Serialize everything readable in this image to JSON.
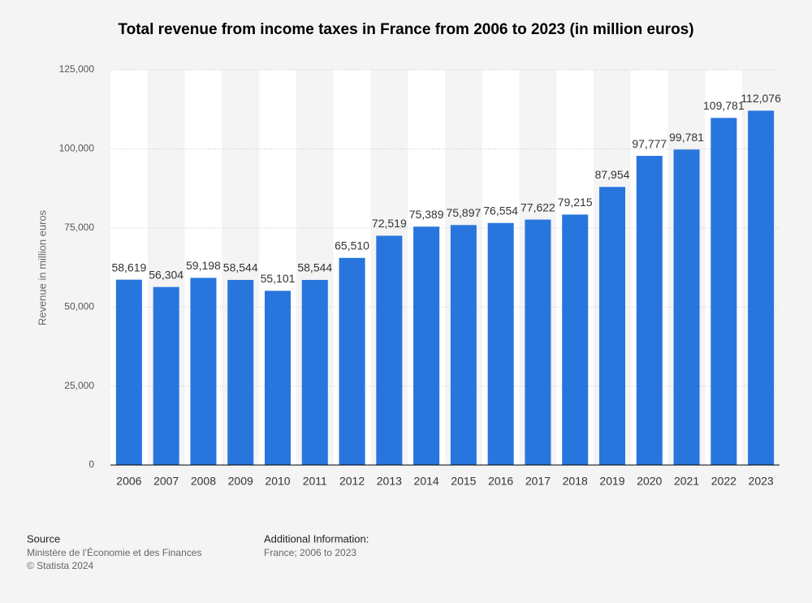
{
  "chart_data": {
    "type": "bar",
    "title": "Total revenue from income taxes in France from 2006 to 2023 (in million euros)",
    "y_label": "Revenue in million euros",
    "categories": [
      "2006",
      "2007",
      "2008",
      "2009",
      "2010",
      "2011",
      "2012",
      "2013",
      "2014",
      "2015",
      "2016",
      "2017",
      "2018",
      "2019",
      "2020",
      "2021",
      "2022",
      "2023"
    ],
    "values": [
      58619,
      56304,
      59198,
      58544,
      55101,
      58544,
      65510,
      72519,
      75389,
      75897,
      76554,
      77622,
      79215,
      87954,
      97777,
      99781,
      109781,
      112076
    ],
    "value_labels": [
      "58,619",
      "56,304",
      "59,198",
      "58,544",
      "55,101",
      "58,544",
      "65,510",
      "72,519",
      "75,389",
      "75,897",
      "76,554",
      "77,622",
      "79,215",
      "87,954",
      "97,777",
      "99,781",
      "109,781",
      "112,076"
    ],
    "color": "#2876dd",
    "ylim": [
      0,
      125000
    ],
    "yticks": [
      0,
      {
        "value": 25000,
        "label": "25,000"
      },
      {
        "value": 50000,
        "label": "50,000"
      },
      {
        "value": 75000,
        "label": "75,000"
      },
      {
        "value": 100000,
        "label": "100,000"
      },
      {
        "value": 125000,
        "label": "125,000"
      }
    ],
    "grid": true,
    "source_label": "Source",
    "source": "Ministère de l’Économie et des Finances",
    "copyright": "© Statista 2024",
    "additional_info_label": "Additional Information:",
    "additional_info": "France; 2006 to 2023"
  }
}
